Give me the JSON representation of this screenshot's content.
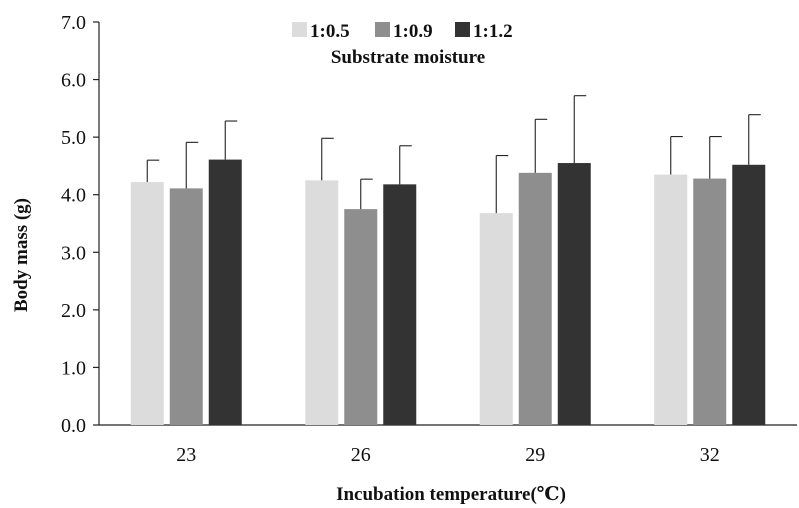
{
  "chart_data": {
    "type": "bar",
    "title": "",
    "xlabel": "Incubation temperature(℃)",
    "ylabel": "Body  mass (g)",
    "categories": [
      "23",
      "26",
      "29",
      "32"
    ],
    "ylim": [
      0,
      7
    ],
    "yticks": [
      "0.0",
      "1.0",
      "2.0",
      "3.0",
      "4.0",
      "5.0",
      "6.0",
      "7.0"
    ],
    "legend_title": "Substrate moisture",
    "legend_position": "top-center",
    "grid": false,
    "series": [
      {
        "name": "1:0.5",
        "color": "#dcdcdc",
        "values": [
          4.22,
          4.25,
          3.68,
          4.35
        ],
        "errors": [
          0.38,
          0.73,
          1.0,
          0.66
        ]
      },
      {
        "name": "1:0.9",
        "color": "#8e8e8e",
        "values": [
          4.11,
          3.75,
          4.38,
          4.28
        ],
        "errors": [
          0.8,
          0.52,
          0.93,
          0.73
        ]
      },
      {
        "name": "1:1.2",
        "color": "#333333",
        "values": [
          4.61,
          4.18,
          4.55,
          4.52
        ],
        "errors": [
          0.67,
          0.67,
          1.17,
          0.87
        ]
      }
    ]
  }
}
